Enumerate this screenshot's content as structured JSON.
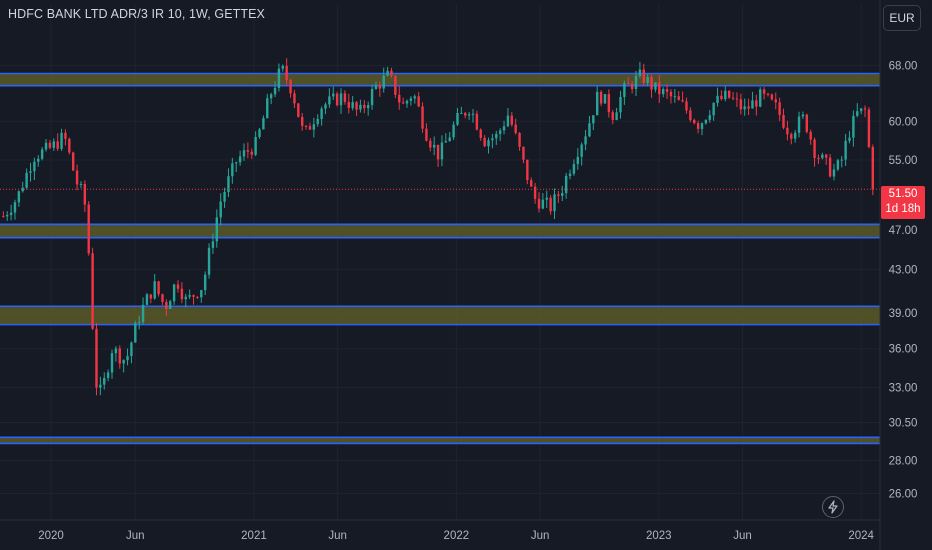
{
  "header": {
    "title": "HDFC BANK LTD ADR/3 IR 10, 1W, GETTEX"
  },
  "currency": {
    "label": "EUR"
  },
  "last_price": {
    "value": "51.50",
    "countdown": "1d 18h"
  },
  "icons": {
    "alert": "lightning-icon"
  },
  "colors": {
    "background": "#161a25",
    "up": "#26a69a",
    "down": "#f23645",
    "zone_fill": "#5a5a28",
    "zone_border": "#2962ff",
    "axis_text": "#b2b5be",
    "last_price_line": "#f23645"
  },
  "chart_data": {
    "type": "candlestick",
    "title": "HDFC BANK LTD ADR/3 IR 10, 1W, GETTEX",
    "y_axis": {
      "scale": "log",
      "range": [
        24.5,
        73
      ],
      "ticks": [
        68.0,
        60.0,
        55.0,
        47.0,
        43.0,
        39.0,
        36.0,
        33.0,
        30.5,
        28.0,
        26.0
      ],
      "tick_labels": [
        "68.00",
        "60.00",
        "55.00",
        "47.00",
        "43.00",
        "39.00",
        "36.00",
        "33.00",
        "30.50",
        "28.00",
        "26.00"
      ]
    },
    "x_axis": {
      "range": [
        "2019-10-01",
        "2024-02-04"
      ],
      "ticks": [
        {
          "date": "2020-01-01",
          "label": "2020"
        },
        {
          "date": "2020-06-01",
          "label": "Jun"
        },
        {
          "date": "2021-01-01",
          "label": "2021"
        },
        {
          "date": "2021-06-01",
          "label": "Jun"
        },
        {
          "date": "2022-01-01",
          "label": "2022"
        },
        {
          "date": "2022-06-01",
          "label": "Jun"
        },
        {
          "date": "2023-01-01",
          "label": "2023"
        },
        {
          "date": "2023-06-01",
          "label": "Jun"
        },
        {
          "date": "2024-01-01",
          "label": "2024"
        }
      ]
    },
    "zones": [
      {
        "low": 65.0,
        "high": 66.8
      },
      {
        "low": 46.2,
        "high": 47.6
      },
      {
        "low": 38.0,
        "high": 39.6
      },
      {
        "low": 29.1,
        "high": 29.5
      }
    ],
    "last_price": 51.5,
    "anchors": [
      [
        "2019-10-01",
        48.0
      ],
      [
        "2019-11-01",
        50.5
      ],
      [
        "2019-12-01",
        55.5
      ],
      [
        "2020-01-01",
        56.5
      ],
      [
        "2020-01-25",
        58.0
      ],
      [
        "2020-02-15",
        52.5
      ],
      [
        "2020-03-01",
        50.5
      ],
      [
        "2020-03-12",
        42.5
      ],
      [
        "2020-03-20",
        33.5
      ],
      [
        "2020-04-01",
        32.5
      ],
      [
        "2020-04-20",
        36.0
      ],
      [
        "2020-05-15",
        35.0
      ],
      [
        "2020-06-10",
        39.0
      ],
      [
        "2020-07-05",
        41.5
      ],
      [
        "2020-07-25",
        39.5
      ],
      [
        "2020-08-15",
        42.0
      ],
      [
        "2020-09-01",
        40.0
      ],
      [
        "2020-10-01",
        41.5
      ],
      [
        "2020-11-01",
        50.0
      ],
      [
        "2020-12-01",
        55.0
      ],
      [
        "2021-01-05",
        57.0
      ],
      [
        "2021-02-01",
        64.0
      ],
      [
        "2021-02-20",
        67.5
      ],
      [
        "2021-03-10",
        64.5
      ],
      [
        "2021-04-01",
        58.0
      ],
      [
        "2021-05-01",
        62.0
      ],
      [
        "2021-06-10",
        63.5
      ],
      [
        "2021-07-10",
        61.0
      ],
      [
        "2021-08-10",
        65.0
      ],
      [
        "2021-09-01",
        66.5
      ],
      [
        "2021-09-25",
        62.0
      ],
      [
        "2021-10-15",
        64.0
      ],
      [
        "2021-11-10",
        58.0
      ],
      [
        "2021-12-01",
        55.5
      ],
      [
        "2022-01-01",
        60.0
      ],
      [
        "2022-01-25",
        62.0
      ],
      [
        "2022-02-20",
        57.5
      ],
      [
        "2022-03-15",
        58.0
      ],
      [
        "2022-04-05",
        61.0
      ],
      [
        "2022-04-30",
        55.0
      ],
      [
        "2022-05-20",
        50.5
      ],
      [
        "2022-06-20",
        49.5
      ],
      [
        "2022-07-10",
        51.5
      ],
      [
        "2022-07-30",
        55.0
      ],
      [
        "2022-08-25",
        59.0
      ],
      [
        "2022-09-15",
        64.0
      ],
      [
        "2022-10-10",
        61.0
      ],
      [
        "2022-11-01",
        64.5
      ],
      [
        "2022-12-01",
        66.5
      ],
      [
        "2022-12-25",
        64.5
      ],
      [
        "2023-01-20",
        63.5
      ],
      [
        "2023-02-15",
        62.0
      ],
      [
        "2023-03-15",
        59.5
      ],
      [
        "2023-04-10",
        62.5
      ],
      [
        "2023-05-05",
        63.5
      ],
      [
        "2023-06-05",
        61.5
      ],
      [
        "2023-07-05",
        63.5
      ],
      [
        "2023-07-30",
        62.0
      ],
      [
        "2023-08-25",
        58.5
      ],
      [
        "2023-09-20",
        60.5
      ],
      [
        "2023-10-10",
        56.0
      ],
      [
        "2023-11-10",
        53.5
      ],
      [
        "2023-11-25",
        54.5
      ],
      [
        "2023-12-10",
        58.5
      ],
      [
        "2023-12-25",
        61.0
      ],
      [
        "2024-01-10",
        61.5
      ],
      [
        "2024-01-19",
        52.5
      ],
      [
        "2024-01-25",
        51.5
      ]
    ]
  }
}
